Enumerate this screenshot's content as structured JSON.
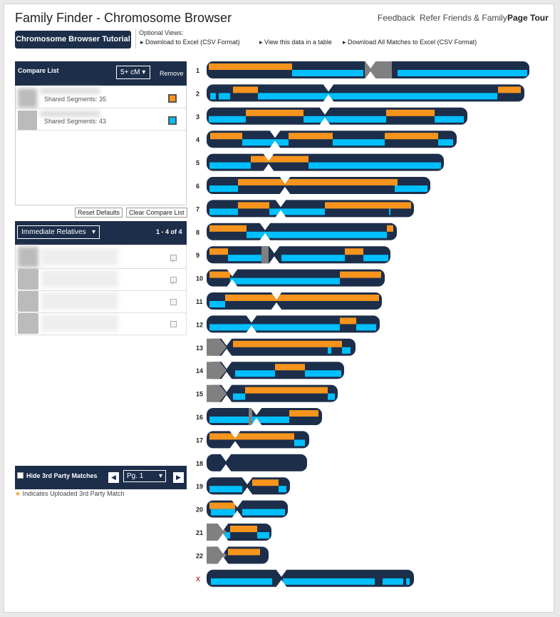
{
  "header": {
    "title": "Family Finder - Chromosome Browser",
    "links": [
      "Feedback",
      "Refer Friends & Family",
      "Page Tour"
    ]
  },
  "toolbar": {
    "tutorial": "Chromosome Browser Tutorial",
    "optional_views": "Optional Views:",
    "links": [
      "Download to Excel (CSV Format)",
      "View this data in a table",
      "Download All Matches to Excel (CSV Format)"
    ]
  },
  "compare_list": {
    "title": "Compare List",
    "filter": "5+ cM",
    "remove": "Remove",
    "items": [
      "Shared Segments: 35",
      "Shared Segments: 43"
    ],
    "buttons": [
      "Reset Defaults",
      "Clear Compare List"
    ]
  },
  "relatives": {
    "filter": "Immediate Relatives",
    "count": "1 - 4 of 4"
  },
  "footer": {
    "hide": "Hide 3rd Party Matches",
    "page": "Pg. 1",
    "note": "Indicates Uploaded 3rd Party Match"
  },
  "chromosomes": {
    "labels": [
      "1",
      "2",
      "3",
      "4",
      "5",
      "6",
      "7",
      "8",
      "9",
      "10",
      "11",
      "12",
      "13",
      "14",
      "15",
      "16",
      "17",
      "18",
      "19",
      "20",
      "21",
      "22",
      "X"
    ]
  }
}
